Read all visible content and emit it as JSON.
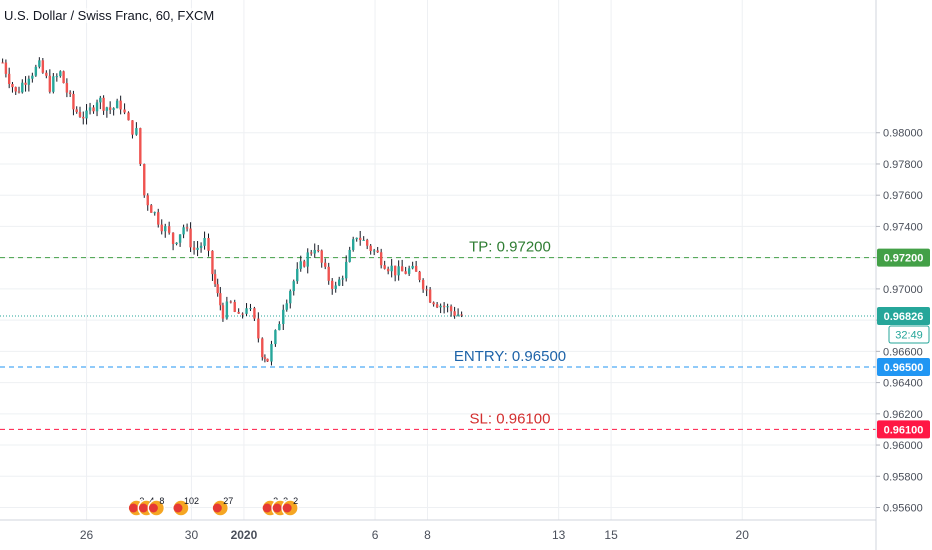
{
  "header": {
    "title": "U.S. Dollar / Swiss Franc, 60, FXCM"
  },
  "countdown": "32:49",
  "colors": {
    "up": "#26a69a",
    "down": "#ef5350",
    "wick": "#131722",
    "tp": "#43a047",
    "entry": "#2196f3",
    "sl": "#ff1744",
    "current": "#26a69a",
    "grid": "#eef0f3",
    "axis_text": "#4a4f5a"
  },
  "events": [
    {
      "x": 4.9,
      "labels": [
        "3",
        "4",
        "8"
      ]
    },
    {
      "x": 6.6,
      "labels": [
        "102"
      ]
    },
    {
      "x": 8.1,
      "labels": [
        "27"
      ]
    },
    {
      "x": 10.0,
      "labels": [
        "2",
        "3",
        "2"
      ]
    }
  ],
  "chart_data": {
    "type": "candlestick",
    "title": "U.S. Dollar / Swiss Franc, 60, FXCM",
    "x_axis": {
      "unit": "day_index (Dec 23 2019 = 0)",
      "range": [
        -0.3,
        33.1
      ],
      "ticks": [
        {
          "x": 3,
          "label": "26"
        },
        {
          "x": 7,
          "label": "30"
        },
        {
          "x": 9,
          "label": "2020"
        },
        {
          "x": 14,
          "label": "6"
        },
        {
          "x": 16,
          "label": "8"
        },
        {
          "x": 21,
          "label": "13"
        },
        {
          "x": 23,
          "label": "15"
        },
        {
          "x": 28,
          "label": "20"
        }
      ]
    },
    "y_axis": {
      "range": [
        0.9552,
        0.9885
      ],
      "ticks": [
        0.956,
        0.958,
        0.96,
        0.962,
        0.964,
        0.966,
        0.968,
        0.97,
        0.972,
        0.974,
        0.976,
        0.978,
        0.98
      ],
      "tick_labels": [
        "0.95600",
        "0.95800",
        "0.96000",
        "0.96200",
        "0.96400",
        "0.96600",
        "0.96800",
        "0.97000",
        "0.97200",
        "0.97400",
        "0.97600",
        "0.97800",
        "0.98000"
      ]
    },
    "grid": true,
    "levels": [
      {
        "name": "tp",
        "price": 0.972,
        "label": "TP:  0.97200",
        "axis_label": "0.97200"
      },
      {
        "name": "entry",
        "price": 0.965,
        "label": "ENTRY:  0.96500",
        "axis_label": "0.96500"
      },
      {
        "name": "sl",
        "price": 0.961,
        "label": "SL:  0.96100",
        "axis_label": "0.96100"
      }
    ],
    "current_price": {
      "price": 0.96826,
      "label": "0.96826"
    },
    "price_path": [
      [
        -0.2,
        0.9845
      ],
      [
        0.3,
        0.9825
      ],
      [
        0.8,
        0.9838
      ],
      [
        1.2,
        0.9842
      ],
      [
        1.6,
        0.983
      ],
      [
        2.0,
        0.9838
      ],
      [
        2.5,
        0.9815
      ],
      [
        3.0,
        0.981
      ],
      [
        3.4,
        0.9822
      ],
      [
        3.9,
        0.9815
      ],
      [
        4.3,
        0.9818
      ],
      [
        4.6,
        0.9805
      ],
      [
        4.9,
        0.98
      ],
      [
        5.2,
        0.976
      ],
      [
        5.6,
        0.9748
      ],
      [
        6.0,
        0.9738
      ],
      [
        6.3,
        0.973
      ],
      [
        6.7,
        0.974
      ],
      [
        7.1,
        0.9725
      ],
      [
        7.5,
        0.973
      ],
      [
        7.8,
        0.971
      ],
      [
        8.0,
        0.9695
      ],
      [
        8.2,
        0.9685
      ],
      [
        8.5,
        0.969
      ],
      [
        8.8,
        0.968
      ],
      [
        9.1,
        0.969
      ],
      [
        9.4,
        0.9678
      ],
      [
        9.7,
        0.966
      ],
      [
        9.9,
        0.9655
      ],
      [
        10.2,
        0.967
      ],
      [
        10.5,
        0.969
      ],
      [
        10.9,
        0.9705
      ],
      [
        11.3,
        0.9718
      ],
      [
        11.7,
        0.9728
      ],
      [
        12.1,
        0.971
      ],
      [
        12.5,
        0.97
      ],
      [
        12.9,
        0.9715
      ],
      [
        13.3,
        0.9735
      ],
      [
        13.7,
        0.9728
      ],
      [
        14.1,
        0.9722
      ],
      [
        14.5,
        0.9715
      ],
      [
        14.9,
        0.971
      ],
      [
        15.3,
        0.9712
      ],
      [
        15.7,
        0.9708
      ],
      [
        16.1,
        0.9695
      ],
      [
        16.5,
        0.969
      ],
      [
        16.9,
        0.9686
      ],
      [
        17.3,
        0.9683
      ]
    ]
  }
}
